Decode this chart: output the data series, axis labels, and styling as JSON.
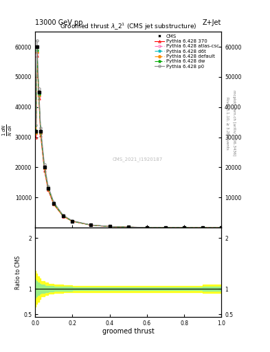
{
  "title": "13000 GeV pp",
  "title_right": "Z+Jet",
  "plot_title": "Groomed thrust $\\lambda$_2$^1$ (CMS jet substructure)",
  "xlabel": "groomed thrust",
  "ylabel_main": "1 / $\\mathrm{N}$ d$\\mathrm{N}$ / d$\\lambda$",
  "ylabel_ratio": "Ratio to CMS",
  "watermark": "CMS_2021_I1920187",
  "right_label1": "Rivet 3.1.10, ≥ 3.2M events",
  "right_label2": "mcplots.cern.ch [arXiv:1306.3436]",
  "x_data": [
    0.005,
    0.01,
    0.02,
    0.03,
    0.05,
    0.07,
    0.1,
    0.15,
    0.2,
    0.3,
    0.4,
    0.5,
    0.6,
    0.7,
    0.8,
    0.9,
    1.0
  ],
  "cms_y": [
    32000,
    60000,
    45000,
    32000,
    20000,
    13000,
    8000,
    4000,
    2200,
    900,
    400,
    200,
    100,
    60,
    30,
    15,
    5
  ],
  "pythia_370_y": [
    30000,
    57000,
    43000,
    30500,
    19000,
    12500,
    7700,
    3800,
    2100,
    850,
    380,
    190,
    95,
    57,
    28,
    14,
    5
  ],
  "pythia_atlas_y": [
    31000,
    58000,
    43500,
    31000,
    19500,
    12700,
    7800,
    3850,
    2130,
    865,
    385,
    192,
    97,
    58,
    29,
    14,
    5
  ],
  "pythia_d6t_y": [
    31500,
    58500,
    44000,
    31500,
    20000,
    13000,
    8000,
    3900,
    2150,
    870,
    388,
    193,
    97,
    58,
    29,
    14,
    5
  ],
  "pythia_default_y": [
    31200,
    58200,
    43800,
    31200,
    19700,
    12800,
    7850,
    3830,
    2120,
    857,
    382,
    191,
    96,
    57,
    28,
    14,
    5
  ],
  "pythia_dw_y": [
    31800,
    58800,
    44200,
    31800,
    20200,
    13200,
    8100,
    3950,
    2170,
    875,
    390,
    194,
    98,
    58,
    29,
    14,
    5
  ],
  "pythia_p0_y": [
    34000,
    62000,
    46000,
    33000,
    21000,
    13800,
    8500,
    4200,
    2300,
    920,
    410,
    205,
    103,
    62,
    31,
    16,
    5
  ],
  "ratio_x": [
    0.005,
    0.01,
    0.02,
    0.03,
    0.05,
    0.07,
    0.1,
    0.15,
    0.2,
    0.3,
    0.4,
    0.5,
    0.6,
    0.7,
    0.8,
    0.9,
    1.0
  ],
  "yellow_band_upper": [
    1.35,
    1.3,
    1.25,
    1.2,
    1.15,
    1.12,
    1.1,
    1.08,
    1.07,
    1.06,
    1.06,
    1.06,
    1.06,
    1.06,
    1.06,
    1.06,
    1.08
  ],
  "yellow_band_lower": [
    0.65,
    0.7,
    0.75,
    0.8,
    0.85,
    0.88,
    0.9,
    0.92,
    0.93,
    0.94,
    0.94,
    0.94,
    0.94,
    0.94,
    0.94,
    0.94,
    0.92
  ],
  "green_band_upper": [
    1.18,
    1.15,
    1.12,
    1.1,
    1.08,
    1.06,
    1.05,
    1.04,
    1.035,
    1.03,
    1.03,
    1.03,
    1.03,
    1.03,
    1.03,
    1.03,
    1.04
  ],
  "green_band_lower": [
    0.82,
    0.85,
    0.88,
    0.9,
    0.92,
    0.94,
    0.95,
    0.96,
    0.965,
    0.97,
    0.97,
    0.97,
    0.97,
    0.97,
    0.97,
    0.97,
    0.96
  ],
  "color_370": "#ff0000",
  "color_atlas": "#ff69b4",
  "color_d6t": "#00bbbb",
  "color_default": "#ff8c00",
  "color_dw": "#00aa00",
  "color_p0": "#888888",
  "color_cms": "#000000",
  "ylim_main": [
    0,
    65000
  ],
  "ylim_ratio": [
    0.45,
    2.2
  ],
  "xlim": [
    0.0,
    1.0
  ],
  "yticks_main": [
    10000,
    20000,
    30000,
    40000,
    50000,
    60000
  ],
  "ytick_labels_main": [
    "10000",
    "20000",
    "30000",
    "40000",
    "50000",
    "60000"
  ],
  "yticks_ratio": [
    0.5,
    1.0,
    2.0
  ],
  "ytick_labels_ratio": [
    "0.5",
    "1",
    "2"
  ],
  "bg_color": "#ffffff"
}
